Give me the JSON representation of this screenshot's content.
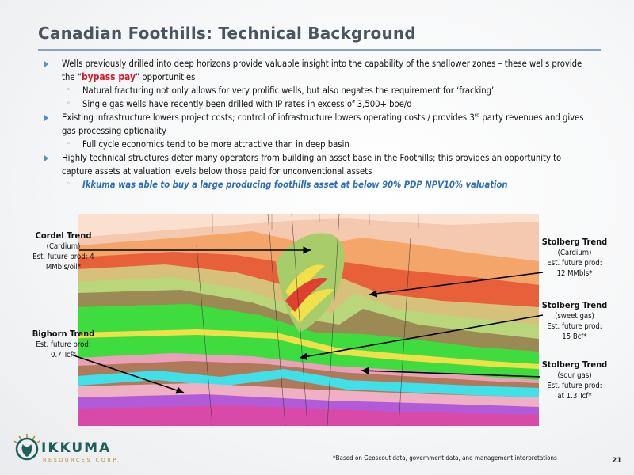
{
  "title": "Canadian Foothills: Technical Background",
  "bullets": {
    "b1_pre": "Wells previously drilled into deep horizons provide valuable insight into the capability of the shallower zones – these wells provide the “",
    "b1_hl": "bypass pay",
    "b1_post": "” opportunities",
    "b1_sub1": "Natural fracturing not only allows for very prolific wells, but also negates the requirement for ‘fracking’",
    "b1_sub2": "Single gas wells have recently been drilled with IP rates in excess of 3,500+ boe/d",
    "b2_pre": "Existing infrastructure lowers project costs; control of infrastructure lowers operating costs / provides 3",
    "b2_sup": "rd",
    "b2_post": " party revenues and gives gas processing optionality",
    "b2_sub1": "Full cycle economics tend to be more attractive than in deep basin",
    "b3": "Highly technical structures deter many operators from building an asset base in the Foothills; this  provides an opportunity to capture assets at valuation levels below those paid for unconventional assets",
    "b3_sub1": "Ikkuma was able to buy a large producing foothills asset at below 90% PDP NPV10% valuation"
  },
  "annotations": {
    "cordel": {
      "title": "Cordel Trend",
      "l1": "(Cardium)",
      "l2": "Est. future prod: 4",
      "l3": "MMbls/oil*"
    },
    "bighorn": {
      "title": "Bighorn Trend",
      "l1": "Est. future prod:",
      "l2": "0.7 Tcf*"
    },
    "stolberg_cardium": {
      "title": "Stolberg Trend",
      "l1": "(Cardium)",
      "l2": "Est. future prod:",
      "l3": "12 MMbls*"
    },
    "stolberg_sweet": {
      "title": "Stolberg Trend",
      "l1": "(sweet gas)",
      "l2": "Est. future prod:",
      "l3": "15 Bcf*"
    },
    "stolberg_sour": {
      "title": "Stolberg Trend",
      "l1": "(sour gas)",
      "l2": "Est. future prod:",
      "l3": "at 1.3 Tcf*"
    }
  },
  "logo": {
    "name": "IKKUMA",
    "sub": "RESOURCES CORP."
  },
  "footnote": "*Based on Geoscout data, government data, and management interpretations",
  "page_number": "21",
  "colors": {
    "accent_blue": "#5b8cc9",
    "highlight_red": "#d11c2a",
    "italic_blue": "#2e6fb8",
    "logo_teal": "#1f5f5a"
  }
}
